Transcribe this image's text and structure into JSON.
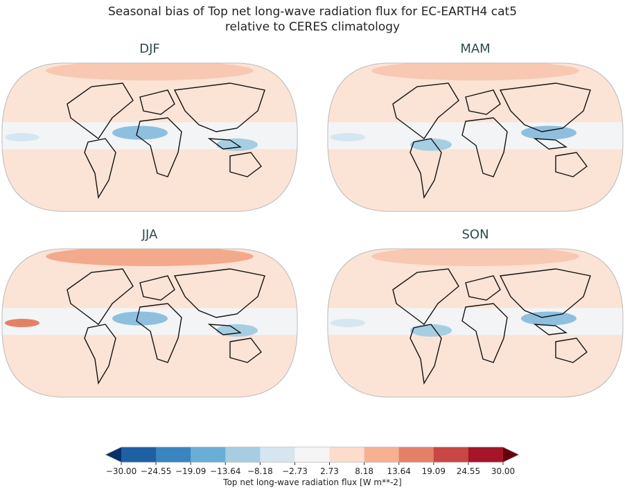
{
  "title": [
    "Seasonal bias of Top net long-wave radiation flux for EC-EARTH4 cat5",
    "relative to CERES climatology"
  ],
  "panels": [
    {
      "season": "DJF"
    },
    {
      "season": "MAM"
    },
    {
      "season": "JJA"
    },
    {
      "season": "SON"
    }
  ],
  "colorbar": {
    "label": "Top net long-wave radiation flux [W m**-2]",
    "ticks": [
      "−30.00",
      "−24.55",
      "−19.09",
      "−13.64",
      "−8.18",
      "−2.73",
      "2.73",
      "8.18",
      "13.64",
      "19.09",
      "24.55",
      "30.00"
    ],
    "colors": [
      "#1f5fa3",
      "#3885bf",
      "#6aaed6",
      "#a6cee3",
      "#d6e6f0",
      "#f5f5f5",
      "#fcdccb",
      "#f6b092",
      "#e48066",
      "#c84643",
      "#a51427"
    ],
    "extend_low": "#08306b",
    "extend_high": "#67000d",
    "range": [
      -30,
      30
    ]
  }
}
